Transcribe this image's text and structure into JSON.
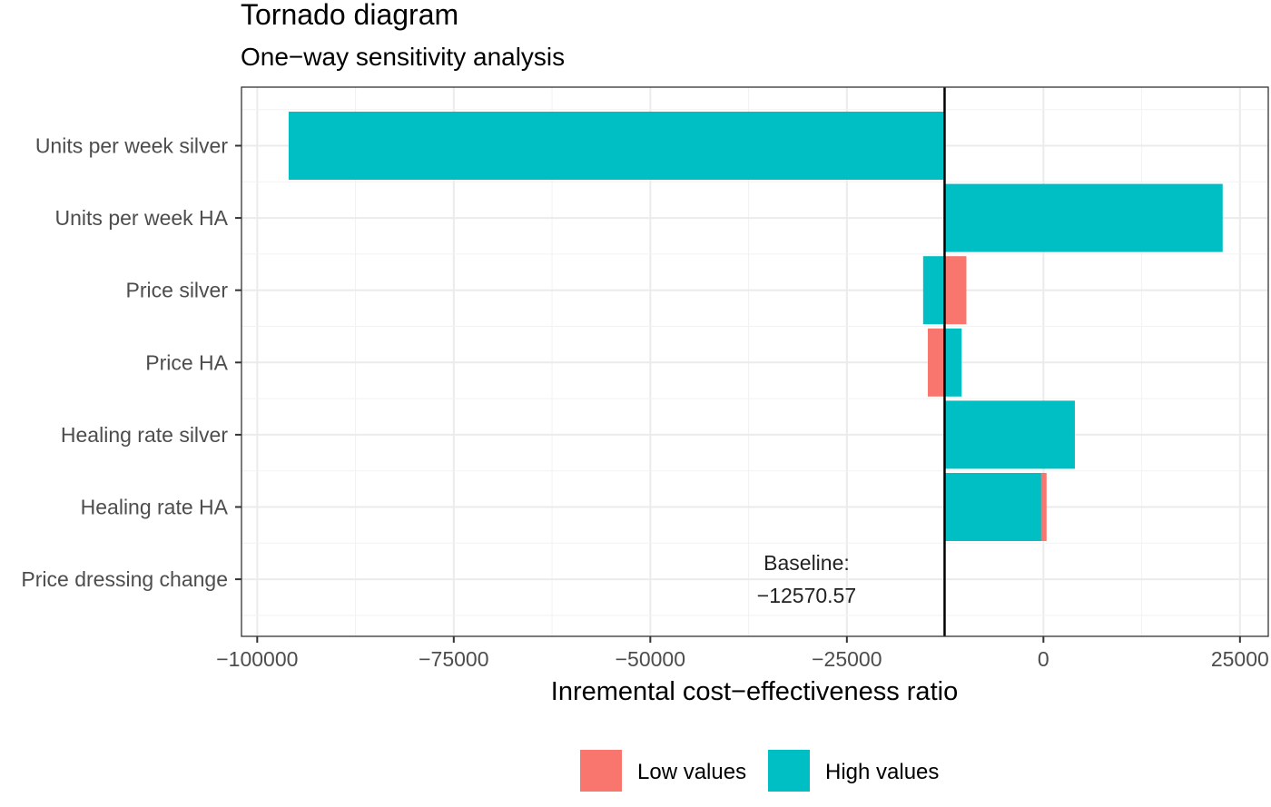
{
  "chart_data": {
    "type": "bar",
    "orientation": "horizontal",
    "title": "Tornado diagram",
    "subtitle": "One−way sensitivity analysis",
    "xlabel": "Inremental cost−effectiveness ratio",
    "ylabel": "",
    "baseline": -12570.57,
    "baseline_label_line1": "Baseline:",
    "baseline_label_line2": "−12570.57",
    "xlim": [
      -102000,
      28600
    ],
    "xticks": [
      {
        "value": -100000,
        "label": "−100000"
      },
      {
        "value": -75000,
        "label": "−75000"
      },
      {
        "value": -50000,
        "label": "−50000"
      },
      {
        "value": -25000,
        "label": "−25000"
      },
      {
        "value": 0,
        "label": "0"
      },
      {
        "value": 25000,
        "label": "25000"
      }
    ],
    "categories": [
      "Units per week silver",
      "Units per week HA",
      "Price silver",
      "Price HA",
      "Healing rate silver",
      "Healing rate HA",
      "Price dressing change"
    ],
    "series": [
      {
        "name": "Low values",
        "color": "#F8766D",
        "values": [
          -12570.57,
          -12570.57,
          -9800,
          -14700,
          -12570.57,
          400,
          -12570.57
        ]
      },
      {
        "name": "High values",
        "color": "#00BFC4",
        "values": [
          -96000,
          22800,
          -15300,
          -10400,
          4000,
          -300,
          -12570.57
        ]
      }
    ],
    "grid": true,
    "legend_position": "bottom"
  }
}
